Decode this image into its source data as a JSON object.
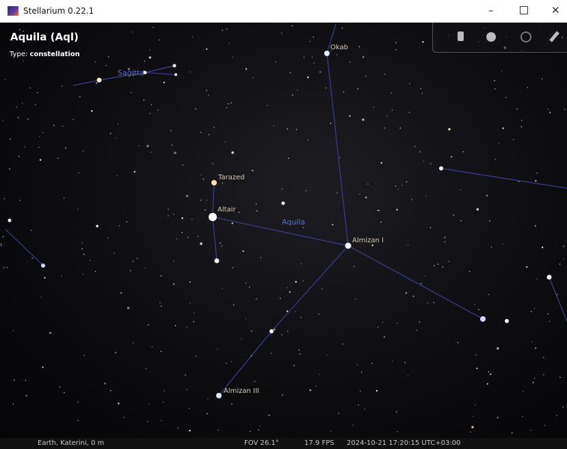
{
  "window": {
    "title": "Stellarium 0.22.1"
  },
  "info": {
    "name": "Aquila (Aql)",
    "type_label": "Type:",
    "type_value": "constellation"
  },
  "sky_labels": {
    "sagitta": "Sagitta",
    "okab": "Okab",
    "tarazed": "Tarazed",
    "altair": "Altair",
    "aquila": "Aquila",
    "almizan_1": "Almizan I",
    "almizan_3": "Almizan III"
  },
  "status_bar": {
    "location": "Earth, Katerini, 0 m",
    "fov": "FOV 26.1°",
    "fps": "17.9 FPS",
    "datetime": "2024-10-21 17:20:15 UTC+03:00"
  }
}
